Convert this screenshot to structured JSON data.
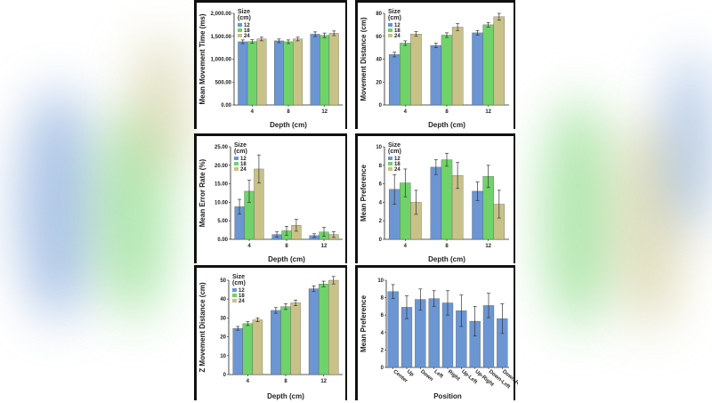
{
  "colors": {
    "size12": "#6b96d3",
    "size18": "#6fd36a",
    "size24": "#c9c288",
    "single": "#6b96d3"
  },
  "chart_data": [
    {
      "type": "bar",
      "xlabel": "Depth (cm)",
      "ylabel": "Mean Movement Time (ms)",
      "ylim": [
        0,
        2000
      ],
      "yticks": [
        "0.00",
        "500.00",
        "1,000.00",
        "1,500.00",
        "2,000.00"
      ],
      "categories": [
        "4",
        "8",
        "12"
      ],
      "legend_title": "Size (cm)",
      "series": [
        {
          "name": "12",
          "values": [
            1380,
            1400,
            1545
          ],
          "errors": [
            40,
            40,
            50
          ]
        },
        {
          "name": "18",
          "values": [
            1385,
            1380,
            1520
          ],
          "errors": [
            40,
            40,
            50
          ]
        },
        {
          "name": "24",
          "values": [
            1440,
            1440,
            1565
          ],
          "errors": [
            40,
            40,
            50
          ]
        }
      ]
    },
    {
      "type": "bar",
      "xlabel": "Depth (cm)",
      "ylabel": "Movement Distance (cm)",
      "ylim": [
        0,
        80
      ],
      "yticks": [
        "0",
        "20",
        "40",
        "60",
        "80"
      ],
      "categories": [
        "4",
        "8",
        "12"
      ],
      "legend_title": "Size (cm)",
      "series": [
        {
          "name": "12",
          "values": [
            44,
            52,
            63
          ],
          "errors": [
            2,
            2,
            2
          ]
        },
        {
          "name": "18",
          "values": [
            54,
            61,
            70
          ],
          "errors": [
            2,
            2,
            2
          ]
        },
        {
          "name": "24",
          "values": [
            62,
            68,
            77
          ],
          "errors": [
            2,
            3,
            3
          ]
        }
      ]
    },
    {
      "type": "bar",
      "xlabel": "Depth (cm)",
      "ylabel": "Mean Error Rate (%)",
      "ylim": [
        0,
        25
      ],
      "yticks": [
        "0.00",
        "5.00",
        "10.00",
        "15.00",
        "20.00",
        "25.00"
      ],
      "categories": [
        "4",
        "8",
        "12"
      ],
      "legend_title": "Size (cm)",
      "series": [
        {
          "name": "12",
          "values": [
            8.8,
            1.3,
            1.0
          ],
          "errors": [
            2.0,
            0.7,
            0.5
          ]
        },
        {
          "name": "18",
          "values": [
            13.0,
            2.3,
            2.0
          ],
          "errors": [
            3.0,
            1.2,
            1.2
          ]
        },
        {
          "name": "24",
          "values": [
            19.0,
            3.8,
            1.3
          ],
          "errors": [
            3.8,
            1.6,
            0.8
          ]
        }
      ]
    },
    {
      "type": "bar",
      "xlabel": "Depth (cm)",
      "ylabel": "Mean Preference",
      "ylim": [
        0,
        10
      ],
      "yticks": [
        "0",
        "2",
        "4",
        "6",
        "8",
        "10"
      ],
      "categories": [
        "4",
        "8",
        "12"
      ],
      "legend_title": "Size (cm)",
      "series": [
        {
          "name": "12",
          "values": [
            5.4,
            7.8,
            5.2
          ],
          "errors": [
            1.6,
            0.8,
            1.0
          ]
        },
        {
          "name": "18",
          "values": [
            6.1,
            8.6,
            6.8
          ],
          "errors": [
            1.5,
            0.7,
            1.2
          ]
        },
        {
          "name": "24",
          "values": [
            4.0,
            6.9,
            3.8
          ],
          "errors": [
            1.3,
            1.4,
            1.5
          ]
        }
      ]
    },
    {
      "type": "bar",
      "xlabel": "Depth (cm)",
      "ylabel": "Z Movement Distance (cm)",
      "ylim": [
        0,
        50
      ],
      "yticks": [
        "0",
        "10",
        "20",
        "30",
        "40",
        "50"
      ],
      "categories": [
        "4",
        "8",
        "12"
      ],
      "legend_title": "Size (cm)",
      "series": [
        {
          "name": "12",
          "values": [
            24.5,
            34.0,
            45.5
          ],
          "errors": [
            1.0,
            1.5,
            1.5
          ]
        },
        {
          "name": "18",
          "values": [
            27.0,
            36.0,
            48.0
          ],
          "errors": [
            1.0,
            1.5,
            1.5
          ]
        },
        {
          "name": "24",
          "values": [
            29.0,
            38.0,
            50.0
          ],
          "errors": [
            1.0,
            1.5,
            2.0
          ]
        }
      ]
    },
    {
      "type": "bar",
      "xlabel": "Position",
      "ylabel": "Mean Preference",
      "ylim": [
        0,
        10
      ],
      "yticks": [
        "0",
        "2",
        "4",
        "6",
        "8",
        "10"
      ],
      "categories": [
        "Center",
        "Up",
        "Down",
        "Left",
        "Right",
        "Up-Left",
        "Up-Right",
        "Down-Left",
        "Down-Right"
      ],
      "series": [
        {
          "values": [
            8.7,
            6.9,
            7.8,
            7.9,
            7.4,
            6.5,
            5.3,
            7.1,
            5.6
          ],
          "errors": [
            0.8,
            1.3,
            1.2,
            0.9,
            1.4,
            1.8,
            1.7,
            1.4,
            1.7
          ]
        }
      ]
    }
  ]
}
